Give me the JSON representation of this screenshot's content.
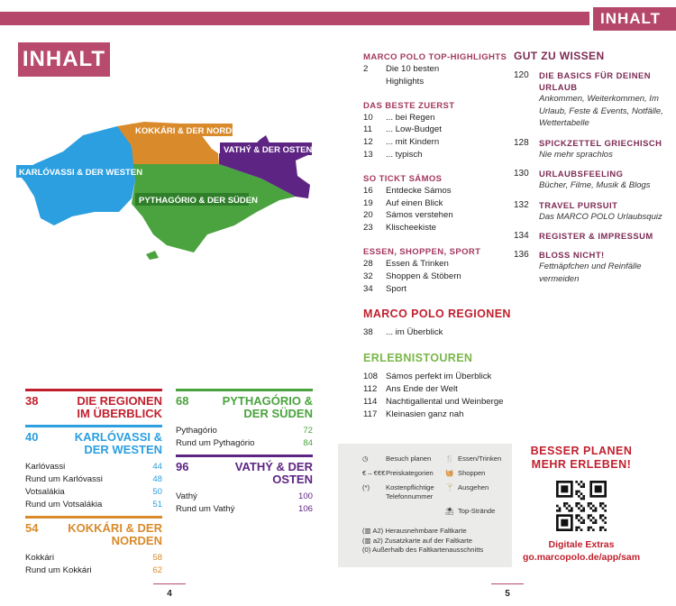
{
  "header": {
    "section_label": "INHALT",
    "title": "INHALT"
  },
  "map": {
    "labels": {
      "west": "KARLÓVASSI & DER WESTEN",
      "north": "KOKKÁRI & DER NORDEN",
      "east": "VATHÝ & DER OSTEN",
      "south": "PYTHAGÓRIO & DER SÜDEN"
    }
  },
  "colors": {
    "accent": "#b5476a",
    "red": "#c0202e",
    "blue": "#2b9fe0",
    "orange": "#d98a2a",
    "green": "#4aa33e",
    "purple": "#5e2483",
    "tour_green": "#7ab648"
  },
  "toc": [
    {
      "heading": "MARCO POLO TOP-HIGHLIGHTS",
      "items": [
        {
          "page": "2",
          "label": "Die 10 besten"
        },
        {
          "page": "",
          "label": "Highlights"
        }
      ]
    },
    {
      "heading": "DAS BESTE ZUERST",
      "items": [
        {
          "page": "10",
          "label": "... bei Regen"
        },
        {
          "page": "11",
          "label": "... Low-Budget"
        },
        {
          "page": "12",
          "label": "... mit Kindern"
        },
        {
          "page": "13",
          "label": "... typisch"
        }
      ]
    },
    {
      "heading": "SO TICKT SÁMOS",
      "items": [
        {
          "page": "16",
          "label": "Entdecke Sámos"
        },
        {
          "page": "19",
          "label": "Auf einen Blick"
        },
        {
          "page": "20",
          "label": "Sámos verstehen"
        },
        {
          "page": "23",
          "label": "Klischeekiste"
        }
      ]
    },
    {
      "heading": "ESSEN, SHOPPEN, SPORT",
      "items": [
        {
          "page": "28",
          "label": "Essen & Trinken"
        },
        {
          "page": "32",
          "label": "Shoppen & Stöbern"
        },
        {
          "page": "34",
          "label": "Sport"
        }
      ]
    },
    {
      "heading": "MARCO POLO REGIONEN",
      "big": true,
      "color": "#c0202e",
      "items": [
        {
          "page": "38",
          "label": "... im Überblick"
        }
      ]
    },
    {
      "heading": "ERLEBNISTOUREN",
      "big": true,
      "color": "#7ab648",
      "items": [
        {
          "page": "108",
          "label": "Sámos perfekt im Überblick"
        },
        {
          "page": "112",
          "label": "Ans Ende der Welt"
        },
        {
          "page": "114",
          "label": "Nachtigallental und Weinberge"
        },
        {
          "page": "117",
          "label": "Kleinasien ganz nah"
        }
      ]
    }
  ],
  "gut_zu_wissen": {
    "heading": "GUT ZU WISSEN",
    "entries": [
      {
        "page": "120",
        "title": "DIE BASICS FÜR DEINEN URLAUB",
        "sub": "Ankommen, Weiterkommen, Im Urlaub, Feste & Events, Notfälle, Wettertabelle"
      },
      {
        "page": "128",
        "title": "SPICKZETTEL GRIECHISCH",
        "sub": "Nie mehr sprachlos"
      },
      {
        "page": "130",
        "title": "URLAUBSFEELING",
        "sub": "Bücher, Filme, Musik & Blogs"
      },
      {
        "page": "132",
        "title": "TRAVEL PURSUIT",
        "sub": "Das MARCO POLO Urlaubsquiz"
      },
      {
        "page": "134",
        "title": "REGISTER & IMPRESSUM",
        "sub": ""
      },
      {
        "page": "136",
        "title": "BLOSS NICHT!",
        "sub": "Fettnäpfchen und Reinfälle vermeiden"
      }
    ]
  },
  "legend": {
    "items": [
      {
        "icon": "clock-icon",
        "symbol": "◷",
        "label": "Besuch planen",
        "icon2": "cutlery-icon",
        "symbol2": "🍴",
        "label2": "Essen/Trinken"
      },
      {
        "icon": "",
        "symbol": "€ – €€€",
        "label": "Preiskategorien",
        "icon2": "basket-icon",
        "symbol2": "🧺",
        "label2": "Shoppen"
      },
      {
        "icon": "",
        "symbol": "(*)",
        "label": "Kostenpflichtige Telefonnummer",
        "icon2": "cocktail-icon",
        "symbol2": "🍸",
        "label2": "Ausgehen"
      },
      {
        "icon": "",
        "symbol": "",
        "label": "",
        "icon2": "beach-icon",
        "symbol2": "⛱",
        "label2": "Top-Strände"
      }
    ],
    "footer": [
      "(▥ A2) Herausnehmbare Faltkarte",
      "(▥ a2) Zusatzkarte auf der Faltkarte",
      "(0) Außerhalb des Faltkartenausschnitts"
    ]
  },
  "promo": {
    "heading_1": "BESSER PLANEN",
    "heading_2": "MEHR ERLEBEN!",
    "extras": "Digitale Extras",
    "url": "go.marcopolo.de/app/sam"
  },
  "regions": [
    {
      "page": "38",
      "title": "DIE REGIONEN IM ÜBERBLICK",
      "color": "#c0202e",
      "rows": []
    },
    {
      "page": "40",
      "title": "KARLÓVASSI & DER WESTEN",
      "color": "#2b9fe0",
      "rows": [
        {
          "label": "Karlóvassi",
          "page": "44"
        },
        {
          "label": "Rund um Karlóvassi",
          "page": "48"
        },
        {
          "label": "Votsalákia",
          "page": "50"
        },
        {
          "label": "Rund um Votsalákia",
          "page": "51"
        }
      ]
    },
    {
      "page": "54",
      "title": "KOKKÁRI & DER NORDEN",
      "color": "#d98a2a",
      "rows": [
        {
          "label": "Kokkári",
          "page": "58"
        },
        {
          "label": "Rund um Kokkári",
          "page": "62"
        }
      ]
    },
    {
      "page": "68",
      "title": "PYTHAGÓRIO & DER SÜDEN",
      "color": "#4aa33e",
      "rows": [
        {
          "label": "Pythagório",
          "page": "72"
        },
        {
          "label": "Rund um Pythagório",
          "page": "84"
        }
      ]
    },
    {
      "page": "96",
      "title": "VATHÝ & DER OSTEN",
      "color": "#5e2483",
      "rows": [
        {
          "label": "Vathý",
          "page": "100"
        },
        {
          "label": "Rund um Vathý",
          "page": "106"
        }
      ]
    }
  ],
  "page_numbers": {
    "left": "4",
    "right": "5"
  }
}
